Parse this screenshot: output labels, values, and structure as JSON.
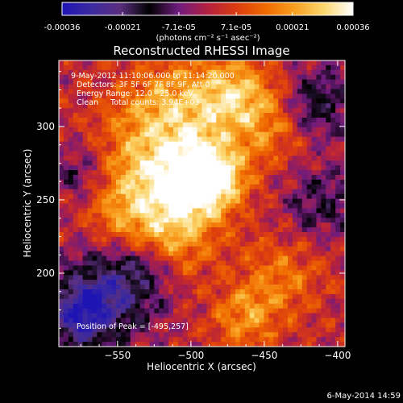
{
  "chart_data": {
    "type": "heatmap",
    "title": "Reconstructed RHESSI Image",
    "xlabel": "Heliocentric X (arcsec)",
    "ylabel": "Heliocentric Y (arcsec)",
    "xlim": [
      -590,
      -395
    ],
    "ylim": [
      150,
      345
    ],
    "x_ticks": [
      -550,
      -500,
      -450,
      -400
    ],
    "y_ticks": [
      200,
      250,
      300
    ],
    "colorbar": {
      "range": [
        -0.00036,
        0.00036
      ],
      "tick_values": [
        -0.00036,
        -0.00021,
        -7.1e-05,
        7.1e-05,
        0.00021,
        0.00036
      ],
      "tick_labels": [
        "-0.00036",
        "-0.00021",
        "-7.1e-05",
        "7.1e-05",
        "0.00021",
        "0.00036"
      ],
      "units_label": "(photons cm⁻² s⁻¹ asec⁻²)",
      "colormap": [
        "#1e14b4",
        "#3c2aa0",
        "#5a2f7e",
        "#000000",
        "#6e1c7e",
        "#b42040",
        "#dc3c10",
        "#f06a00",
        "#f8a020",
        "#fcd870",
        "#ffffff"
      ]
    },
    "annotations": {
      "time": "9-May-2012 11:10:06.000 to 11:14:20.000",
      "detectors": "Detectors: 3F 5F 6F 7F 8F 9F, Att 0",
      "energy": "Energy Range: 12.0 - 25.0 keV",
      "clean": "Clean     Total counts: 3.94E+03",
      "peak": "Position of Peak = [-495,257]"
    },
    "grid": false
  },
  "footer": {
    "date": "6-May-2014 14:59"
  }
}
